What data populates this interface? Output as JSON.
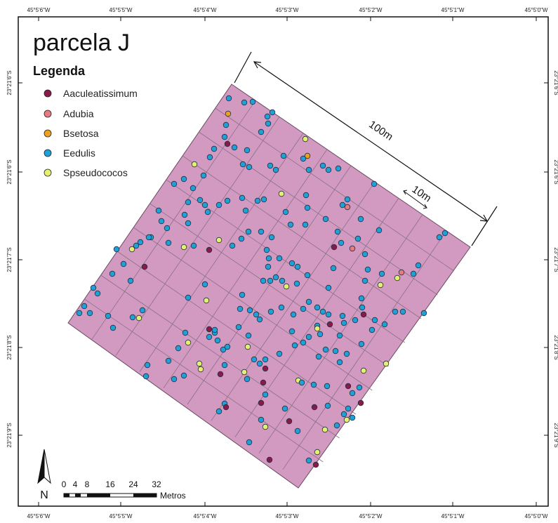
{
  "map": {
    "title": "parcela J",
    "legend_title": "Legenda",
    "legend": [
      {
        "label": "Aaculeatissimum",
        "color": "#8b1a4a"
      },
      {
        "label": "Adubia",
        "color": "#e67a80"
      },
      {
        "label": "Bsetosa",
        "color": "#f0a020"
      },
      {
        "label": "Eedulis",
        "color": "#20a0d8"
      },
      {
        "label": "Spseudococos",
        "color": "#e6f070"
      }
    ],
    "plot_fill": "#d29ac0",
    "dimension_large": "100m",
    "dimension_small": "10m",
    "north_label": "N",
    "scale": {
      "ticks": [
        "0",
        "4",
        "8",
        "16",
        "24",
        "32"
      ],
      "unit": "Metros"
    },
    "lon_labels": [
      "45°5'6\"W",
      "45°5'5\"W",
      "45°5'4\"W",
      "45°5'3\"W",
      "45°5'2\"W",
      "45°5'1\"W",
      "45°5'0\"W"
    ],
    "lat_labels": [
      "23°21'6\"S",
      "23°21'6\"S",
      "23°21'7\"S",
      "23°21'8\"S",
      "23°21'9\"S"
    ]
  }
}
